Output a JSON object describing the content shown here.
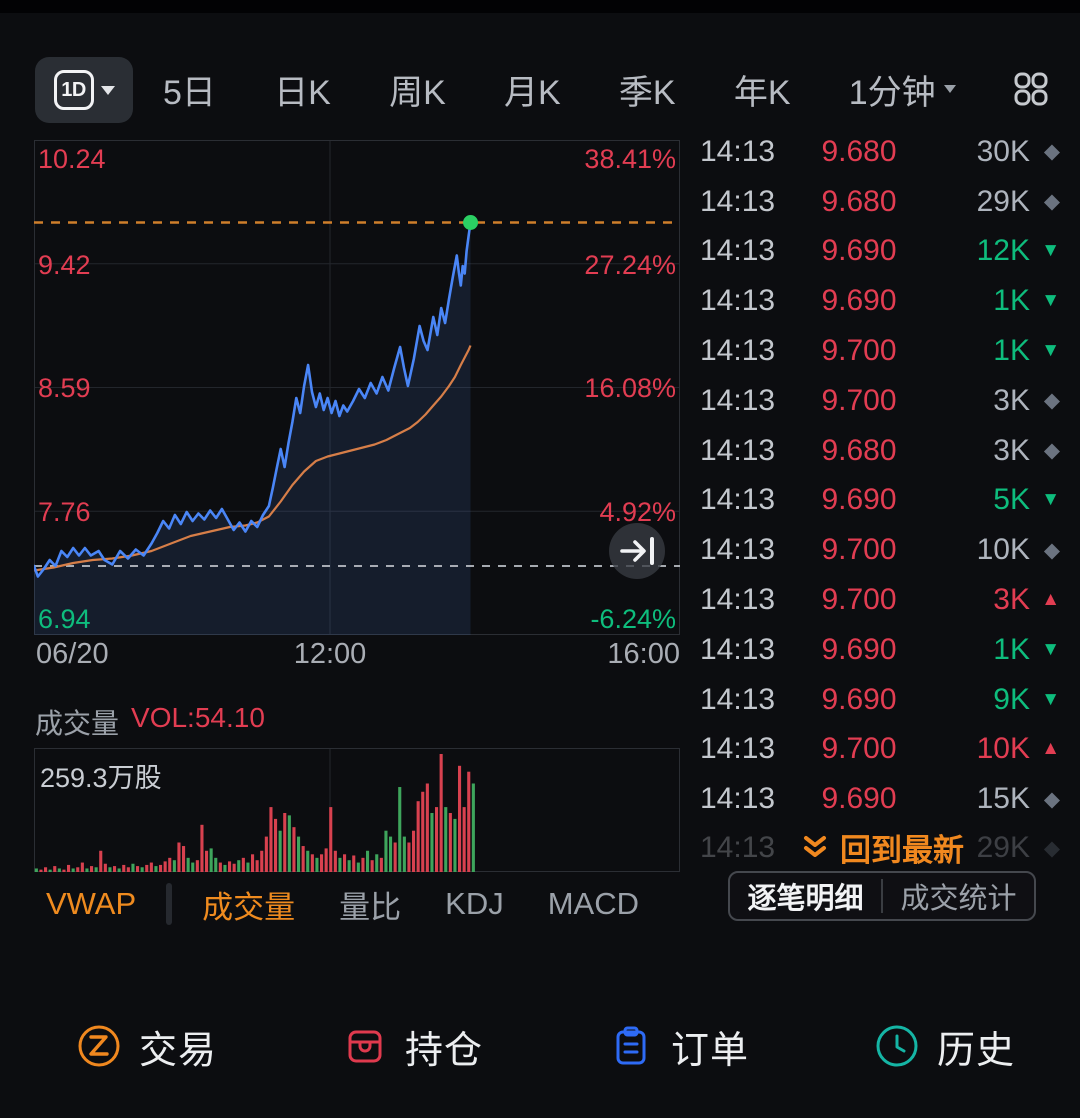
{
  "toolbar": {
    "selected_range": "1D",
    "tabs": [
      "5日",
      "日K",
      "周K",
      "月K",
      "季K",
      "年K"
    ],
    "minute_tab": "1分钟",
    "grid_icon": "indicator-grid-icon"
  },
  "chart": {
    "price_axis": [
      "10.24",
      "9.42",
      "8.59",
      "7.76",
      "6.94"
    ],
    "pct_axis": [
      "38.41%",
      "27.24%",
      "16.08%",
      "4.92%",
      "-6.24%"
    ],
    "x_axis": [
      "06/20",
      "12:00",
      "16:00"
    ],
    "goto_latest_icon": "jump-to-latest-icon"
  },
  "chart_data": {
    "type": "line",
    "title": "1D intraday price chart",
    "x_ticks": [
      "06/20",
      "12:00",
      "16:00"
    ],
    "y_ticks": [
      10.24,
      9.42,
      8.59,
      7.76,
      6.94
    ],
    "pct_ticks": [
      "38.41%",
      "27.24%",
      "16.08%",
      "4.92%",
      "-6.24%"
    ],
    "ylim": [
      6.94,
      10.24
    ],
    "session_minutes": 330,
    "current_minute": 223,
    "prev_close_line": 7.4,
    "current_price_line": 9.69,
    "legend_position": "none",
    "grid": true,
    "series": [
      {
        "name": "price",
        "color": "#4a86f7",
        "points": [
          [
            0,
            7.4
          ],
          [
            2,
            7.33
          ],
          [
            5,
            7.38
          ],
          [
            8,
            7.44
          ],
          [
            11,
            7.4
          ],
          [
            14,
            7.5
          ],
          [
            17,
            7.46
          ],
          [
            20,
            7.52
          ],
          [
            23,
            7.47
          ],
          [
            26,
            7.52
          ],
          [
            29,
            7.47
          ],
          [
            33,
            7.5
          ],
          [
            36,
            7.44
          ],
          [
            40,
            7.41
          ],
          [
            44,
            7.5
          ],
          [
            48,
            7.45
          ],
          [
            52,
            7.51
          ],
          [
            56,
            7.47
          ],
          [
            60,
            7.55
          ],
          [
            63,
            7.62
          ],
          [
            66,
            7.7
          ],
          [
            69,
            7.65
          ],
          [
            72,
            7.74
          ],
          [
            75,
            7.68
          ],
          [
            78,
            7.76
          ],
          [
            81,
            7.7
          ],
          [
            84,
            7.75
          ],
          [
            87,
            7.71
          ],
          [
            90,
            7.77
          ],
          [
            93,
            7.72
          ],
          [
            96,
            7.78
          ],
          [
            99,
            7.71
          ],
          [
            102,
            7.64
          ],
          [
            105,
            7.69
          ],
          [
            108,
            7.63
          ],
          [
            111,
            7.7
          ],
          [
            114,
            7.66
          ],
          [
            117,
            7.74
          ],
          [
            120,
            7.8
          ],
          [
            122,
            7.92
          ],
          [
            124,
            8.05
          ],
          [
            126,
            8.18
          ],
          [
            128,
            8.06
          ],
          [
            130,
            8.22
          ],
          [
            132,
            8.36
          ],
          [
            134,
            8.52
          ],
          [
            136,
            8.42
          ],
          [
            138,
            8.6
          ],
          [
            140,
            8.74
          ],
          [
            142,
            8.56
          ],
          [
            144,
            8.46
          ],
          [
            146,
            8.55
          ],
          [
            148,
            8.44
          ],
          [
            150,
            8.52
          ],
          [
            152,
            8.42
          ],
          [
            154,
            8.5
          ],
          [
            156,
            8.4
          ],
          [
            158,
            8.47
          ],
          [
            160,
            8.43
          ],
          [
            163,
            8.5
          ],
          [
            166,
            8.58
          ],
          [
            169,
            8.52
          ],
          [
            172,
            8.62
          ],
          [
            175,
            8.55
          ],
          [
            178,
            8.66
          ],
          [
            181,
            8.57
          ],
          [
            184,
            8.72
          ],
          [
            187,
            8.86
          ],
          [
            189,
            8.72
          ],
          [
            191,
            8.6
          ],
          [
            194,
            8.78
          ],
          [
            197,
            9.0
          ],
          [
            199,
            8.9
          ],
          [
            201,
            8.84
          ],
          [
            204,
            9.06
          ],
          [
            206,
            8.94
          ],
          [
            208,
            9.12
          ],
          [
            210,
            9.02
          ],
          [
            212,
            9.18
          ],
          [
            214,
            9.33
          ],
          [
            216,
            9.47
          ],
          [
            217,
            9.36
          ],
          [
            218,
            9.27
          ],
          [
            219,
            9.4
          ],
          [
            220,
            9.35
          ],
          [
            221,
            9.5
          ],
          [
            222,
            9.6
          ],
          [
            223,
            9.69
          ]
        ]
      },
      {
        "name": "VWAP",
        "color": "#d67e48",
        "points": [
          [
            0,
            7.37
          ],
          [
            10,
            7.39
          ],
          [
            20,
            7.42
          ],
          [
            30,
            7.44
          ],
          [
            40,
            7.45
          ],
          [
            50,
            7.47
          ],
          [
            60,
            7.5
          ],
          [
            70,
            7.55
          ],
          [
            80,
            7.6
          ],
          [
            90,
            7.63
          ],
          [
            100,
            7.66
          ],
          [
            108,
            7.67
          ],
          [
            114,
            7.69
          ],
          [
            120,
            7.73
          ],
          [
            126,
            7.83
          ],
          [
            132,
            7.94
          ],
          [
            138,
            8.03
          ],
          [
            144,
            8.1
          ],
          [
            150,
            8.13
          ],
          [
            156,
            8.15
          ],
          [
            162,
            8.17
          ],
          [
            168,
            8.19
          ],
          [
            174,
            8.21
          ],
          [
            180,
            8.24
          ],
          [
            186,
            8.28
          ],
          [
            192,
            8.32
          ],
          [
            196,
            8.36
          ],
          [
            200,
            8.41
          ],
          [
            204,
            8.47
          ],
          [
            208,
            8.53
          ],
          [
            212,
            8.6
          ],
          [
            215,
            8.66
          ],
          [
            218,
            8.74
          ],
          [
            220,
            8.79
          ],
          [
            222,
            8.84
          ],
          [
            223,
            8.87
          ]
        ]
      }
    ],
    "volume_pane": {
      "max_label": "259.3万股",
      "vol_label": "VOL:54.10",
      "bars": [
        [
          0.03,
          "g"
        ],
        [
          0.02,
          "r"
        ],
        [
          0.04,
          "r"
        ],
        [
          0.02,
          "g"
        ],
        [
          0.05,
          "r"
        ],
        [
          0.03,
          "g"
        ],
        [
          0.02,
          "r"
        ],
        [
          0.06,
          "r"
        ],
        [
          0.03,
          "g"
        ],
        [
          0.04,
          "r"
        ],
        [
          0.08,
          "r"
        ],
        [
          0.03,
          "g"
        ],
        [
          0.05,
          "r"
        ],
        [
          0.04,
          "g"
        ],
        [
          0.18,
          "r"
        ],
        [
          0.07,
          "r"
        ],
        [
          0.04,
          "g"
        ],
        [
          0.05,
          "r"
        ],
        [
          0.03,
          "g"
        ],
        [
          0.06,
          "r"
        ],
        [
          0.04,
          "r"
        ],
        [
          0.07,
          "g"
        ],
        [
          0.05,
          "r"
        ],
        [
          0.04,
          "g"
        ],
        [
          0.06,
          "r"
        ],
        [
          0.08,
          "r"
        ],
        [
          0.05,
          "g"
        ],
        [
          0.06,
          "r"
        ],
        [
          0.09,
          "r"
        ],
        [
          0.12,
          "r"
        ],
        [
          0.1,
          "g"
        ],
        [
          0.25,
          "r"
        ],
        [
          0.22,
          "r"
        ],
        [
          0.12,
          "g"
        ],
        [
          0.08,
          "g"
        ],
        [
          0.1,
          "r"
        ],
        [
          0.4,
          "r"
        ],
        [
          0.18,
          "r"
        ],
        [
          0.2,
          "g"
        ],
        [
          0.12,
          "g"
        ],
        [
          0.08,
          "r"
        ],
        [
          0.06,
          "g"
        ],
        [
          0.09,
          "r"
        ],
        [
          0.07,
          "r"
        ],
        [
          0.1,
          "g"
        ],
        [
          0.12,
          "r"
        ],
        [
          0.08,
          "g"
        ],
        [
          0.15,
          "r"
        ],
        [
          0.1,
          "r"
        ],
        [
          0.18,
          "r"
        ],
        [
          0.3,
          "r"
        ],
        [
          0.55,
          "r"
        ],
        [
          0.45,
          "r"
        ],
        [
          0.35,
          "g"
        ],
        [
          0.5,
          "r"
        ],
        [
          0.48,
          "g"
        ],
        [
          0.38,
          "r"
        ],
        [
          0.3,
          "g"
        ],
        [
          0.22,
          "r"
        ],
        [
          0.18,
          "g"
        ],
        [
          0.15,
          "r"
        ],
        [
          0.12,
          "g"
        ],
        [
          0.15,
          "r"
        ],
        [
          0.2,
          "r"
        ],
        [
          0.55,
          "r"
        ],
        [
          0.18,
          "r"
        ],
        [
          0.12,
          "g"
        ],
        [
          0.15,
          "r"
        ],
        [
          0.1,
          "g"
        ],
        [
          0.14,
          "r"
        ],
        [
          0.08,
          "g"
        ],
        [
          0.12,
          "r"
        ],
        [
          0.18,
          "g"
        ],
        [
          0.1,
          "r"
        ],
        [
          0.15,
          "g"
        ],
        [
          0.12,
          "r"
        ],
        [
          0.35,
          "g"
        ],
        [
          0.3,
          "g"
        ],
        [
          0.25,
          "r"
        ],
        [
          0.72,
          "g"
        ],
        [
          0.3,
          "g"
        ],
        [
          0.25,
          "r"
        ],
        [
          0.35,
          "r"
        ],
        [
          0.6,
          "r"
        ],
        [
          0.68,
          "r"
        ],
        [
          0.75,
          "r"
        ],
        [
          0.5,
          "g"
        ],
        [
          0.55,
          "r"
        ],
        [
          1.0,
          "r"
        ],
        [
          0.55,
          "g"
        ],
        [
          0.5,
          "r"
        ],
        [
          0.45,
          "g"
        ],
        [
          0.9,
          "r"
        ],
        [
          0.55,
          "r"
        ],
        [
          0.85,
          "r"
        ],
        [
          0.75,
          "g"
        ]
      ]
    }
  },
  "volume": {
    "title": "成交量",
    "vol_label": "VOL:54.10",
    "scale_label": "259.3万股"
  },
  "indicator_tabs": [
    {
      "label": "VWAP",
      "active": true
    },
    {
      "label": "成交量",
      "active": true
    },
    {
      "label": "量比",
      "active": false
    },
    {
      "label": "KDJ",
      "active": false
    },
    {
      "label": "MACD",
      "active": false
    }
  ],
  "tape": {
    "rows": [
      {
        "time": "14:13",
        "price": "9.680",
        "vol": "30K",
        "dir": "n"
      },
      {
        "time": "14:13",
        "price": "9.680",
        "vol": "29K",
        "dir": "n"
      },
      {
        "time": "14:13",
        "price": "9.690",
        "vol": "12K",
        "dir": "s"
      },
      {
        "time": "14:13",
        "price": "9.690",
        "vol": "1K",
        "dir": "s"
      },
      {
        "time": "14:13",
        "price": "9.700",
        "vol": "1K",
        "dir": "s"
      },
      {
        "time": "14:13",
        "price": "9.700",
        "vol": "3K",
        "dir": "n"
      },
      {
        "time": "14:13",
        "price": "9.680",
        "vol": "3K",
        "dir": "n"
      },
      {
        "time": "14:13",
        "price": "9.690",
        "vol": "5K",
        "dir": "s"
      },
      {
        "time": "14:13",
        "price": "9.700",
        "vol": "10K",
        "dir": "n"
      },
      {
        "time": "14:13",
        "price": "9.700",
        "vol": "3K",
        "dir": "b"
      },
      {
        "time": "14:13",
        "price": "9.690",
        "vol": "1K",
        "dir": "s"
      },
      {
        "time": "14:13",
        "price": "9.690",
        "vol": "9K",
        "dir": "s"
      },
      {
        "time": "14:13",
        "price": "9.700",
        "vol": "10K",
        "dir": "b"
      },
      {
        "time": "14:13",
        "price": "9.690",
        "vol": "15K",
        "dir": "n"
      }
    ],
    "dim_row": {
      "time": "14:13",
      "price": "",
      "vol": "29K",
      "dir": "n"
    },
    "back_button": "回到最新",
    "detail_tabs": [
      "逐笔明细",
      "成交统计"
    ]
  },
  "bottom_nav": [
    {
      "label": "交易",
      "icon": "trade-icon",
      "color": "#f0881f"
    },
    {
      "label": "持仓",
      "icon": "positions-icon",
      "color": "#e03a4e"
    },
    {
      "label": "订单",
      "icon": "orders-icon",
      "color": "#2e6bf6"
    },
    {
      "label": "历史",
      "icon": "history-icon",
      "color": "#15b5a5"
    }
  ],
  "colors": {
    "up_red": "#e23d52",
    "down_green": "#0ebd7d",
    "accent_orange": "#f0881f",
    "price_line_blue": "#4a86f7",
    "vwap_orange": "#d67e48",
    "neutral_diamond": "#6b7380",
    "bar_red": "#d8414f",
    "bar_green": "#3ea55c",
    "background": "#0c0d10"
  }
}
